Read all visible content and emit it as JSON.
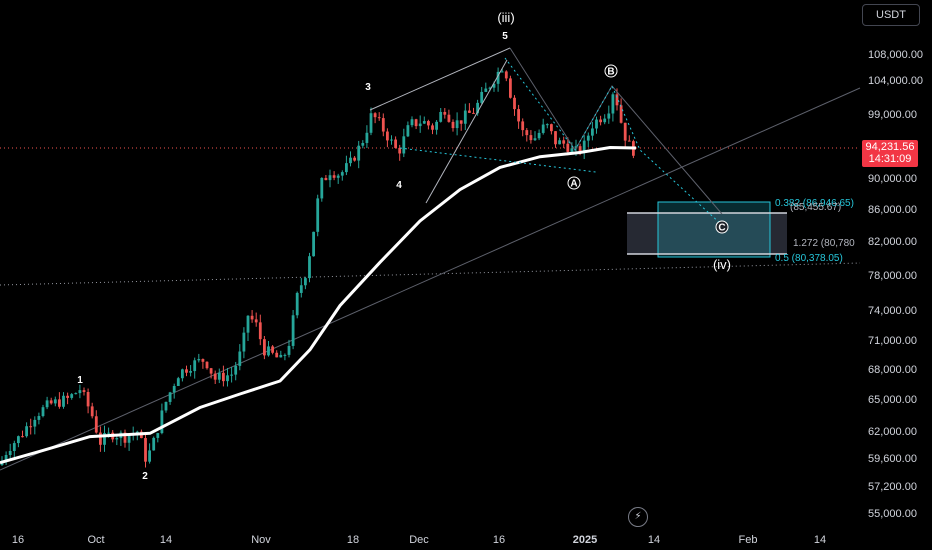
{
  "unit_label": "USDT",
  "last_price": {
    "value": "94,231.56",
    "countdown": "14:31:09"
  },
  "chart_data": {
    "type": "candlestick",
    "y_ticks": [
      "108,000.00",
      "104,000.00",
      "99,000.00",
      "94,231.56",
      "90,000.00",
      "86,000.00",
      "82,000.00",
      "78,000.00",
      "74,000.00",
      "71,000.00",
      "68,000.00",
      "65,000.00",
      "62,000.00",
      "59,600.00",
      "57,200.00",
      "55,000.00"
    ],
    "x_ticks": [
      "16",
      "Oct",
      "14",
      "Nov",
      "18",
      "Dec",
      "16",
      "2025",
      "14",
      "Feb",
      "14"
    ],
    "moving_average": {
      "color": "#ffffff"
    },
    "elliott_labels": {
      "wave1": "1",
      "wave2": "2",
      "wave3": "3",
      "wave4": "4",
      "wave5": "5",
      "waveiii": "(iii)",
      "waveA": "A",
      "waveB": "B",
      "waveC": "C",
      "waveiv": "(iv)"
    },
    "fib_labels": {
      "f382": "0.382 (86,946.65)",
      "f618": "(85,455.67)",
      "f1272": "1.272 (80,780",
      "f05": "0.5 (80,378.05)"
    },
    "colors": {
      "up": "#26a69a",
      "down": "#ef5350",
      "fib": "#26c6da",
      "zone": "#2a2e39"
    }
  }
}
